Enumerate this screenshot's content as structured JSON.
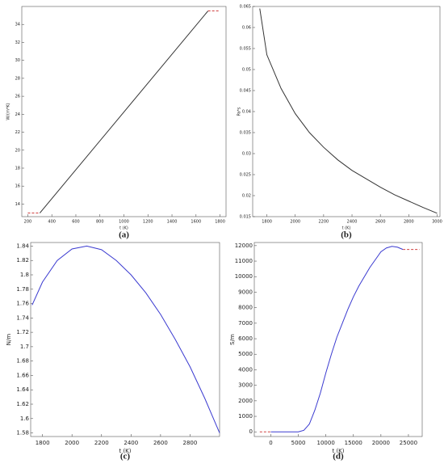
{
  "chart_data": [
    {
      "type": "line",
      "label": "(a)",
      "x_label": "t (K)",
      "y_label": "W/(m*K)",
      "xlim": [
        150,
        1850
      ],
      "xticks": [
        200,
        400,
        600,
        800,
        1000,
        1200,
        1400,
        1600,
        1800
      ],
      "ylim": [
        12.6,
        36
      ],
      "yticks": [
        14,
        16,
        18,
        20,
        22,
        24,
        26,
        28,
        30,
        32,
        34
      ],
      "series": [
        {
          "color": "#d04040",
          "dashed": true,
          "x": [
            200,
            300
          ],
          "values": [
            13,
            13
          ]
        },
        {
          "color": "#333333",
          "dashed": false,
          "x": [
            300,
            1700
          ],
          "values": [
            13,
            35.5
          ]
        },
        {
          "color": "#d04040",
          "dashed": true,
          "x": [
            1700,
            1800
          ],
          "values": [
            35.5,
            35.5
          ]
        }
      ]
    },
    {
      "type": "line",
      "label": "(b)",
      "x_label": "t (K)",
      "y_label": "Pa*s",
      "xlim": [
        1700,
        3020
      ],
      "xticks": [
        1800,
        2000,
        2200,
        2400,
        2600,
        2800,
        3000
      ],
      "ylim": [
        0.015,
        0.065
      ],
      "yticks": [
        0.015,
        0.02,
        0.025,
        0.03,
        0.035,
        0.04,
        0.045,
        0.05,
        0.055,
        0.06,
        0.065
      ],
      "series": [
        {
          "color": "#333333",
          "dashed": false,
          "x": [
            1750,
            1800,
            1900,
            2000,
            2100,
            2200,
            2300,
            2400,
            2500,
            2600,
            2700,
            2800,
            2900,
            3000
          ],
          "values": [
            0.0645,
            0.0535,
            0.0455,
            0.0395,
            0.035,
            0.0315,
            0.0285,
            0.026,
            0.024,
            0.022,
            0.0202,
            0.0187,
            0.0172,
            0.0158
          ]
        }
      ]
    },
    {
      "type": "line",
      "label": "(c)",
      "x_label": "t (K)",
      "y_label": "N/m",
      "xlim": [
        1720,
        3000
      ],
      "xticks": [
        1800,
        2000,
        2200,
        2400,
        2600,
        2800
      ],
      "ylim": [
        1.575,
        1.845
      ],
      "yticks": [
        1.58,
        1.6,
        1.62,
        1.64,
        1.66,
        1.68,
        1.7,
        1.72,
        1.74,
        1.76,
        1.78,
        1.8,
        1.82,
        1.84
      ],
      "series": [
        {
          "color": "#3a3ad0",
          "dashed": false,
          "x": [
            1730,
            1800,
            1900,
            2000,
            2100,
            2200,
            2300,
            2400,
            2500,
            2600,
            2700,
            2800,
            2900,
            3000
          ],
          "values": [
            1.758,
            1.79,
            1.82,
            1.836,
            1.84,
            1.835,
            1.82,
            1.8,
            1.775,
            1.745,
            1.71,
            1.672,
            1.628,
            1.58
          ]
        }
      ]
    },
    {
      "type": "line",
      "label": "(d)",
      "x_label": "t (K)",
      "y_label": "S/m",
      "xlim": [
        -3000,
        27500
      ],
      "xticks": [
        0,
        5000,
        10000,
        15000,
        20000,
        25000
      ],
      "ylim": [
        -300,
        12200
      ],
      "yticks": [
        0,
        1000,
        2000,
        3000,
        4000,
        5000,
        6000,
        7000,
        8000,
        9000,
        10000,
        11000,
        12000
      ],
      "series": [
        {
          "color": "#d04040",
          "dashed": true,
          "x": [
            -2000,
            0
          ],
          "values": [
            0,
            0
          ]
        },
        {
          "color": "#3a3ad0",
          "dashed": false,
          "x": [
            0,
            5000,
            6000,
            7000,
            8000,
            9000,
            10000,
            11000,
            12000,
            13000,
            14000,
            15000,
            16000,
            17000,
            18000,
            19000,
            20000,
            21000,
            22000,
            23000,
            24000
          ],
          "values": [
            0,
            0,
            100,
            500,
            1400,
            2500,
            3800,
            5000,
            6100,
            7000,
            7900,
            8700,
            9400,
            10000,
            10600,
            11100,
            11600,
            11850,
            11950,
            11900,
            11750
          ]
        },
        {
          "color": "#d04040",
          "dashed": true,
          "x": [
            24000,
            27000
          ],
          "values": [
            11750,
            11750
          ]
        }
      ]
    }
  ]
}
